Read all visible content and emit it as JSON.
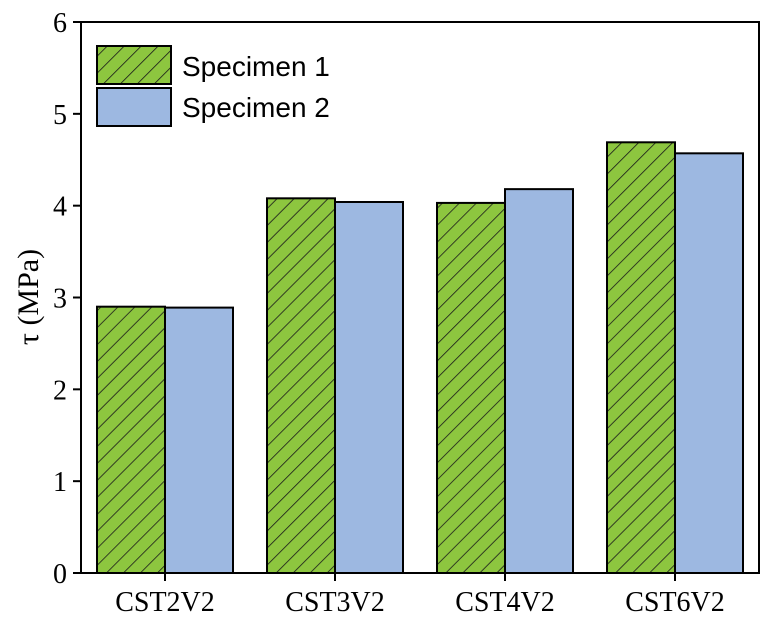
{
  "chart_data": {
    "type": "bar",
    "categories": [
      "CST2V2",
      "CST3V2",
      "CST4V2",
      "CST6V2"
    ],
    "series": [
      {
        "name": "Specimen 1",
        "values": [
          2.9,
          4.08,
          4.03,
          4.69
        ],
        "color": "#8dc63f",
        "pattern": "hatch"
      },
      {
        "name": "Specimen 2",
        "values": [
          2.89,
          4.04,
          4.18,
          4.57
        ],
        "color": "#9db8e1",
        "pattern": "solid"
      }
    ],
    "title": "",
    "xlabel": "",
    "ylabel": "τ (MPa)",
    "ylim": [
      0,
      6
    ],
    "yticks": [
      0,
      1,
      2,
      3,
      4,
      5,
      6
    ],
    "grid": false,
    "legend_position": "top-left"
  }
}
